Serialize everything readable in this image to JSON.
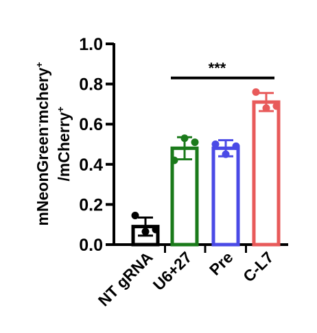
{
  "chart_data": {
    "type": "bar",
    "ylabel": {
      "line1_main": "mNeonGreen",
      "line1_sup1": "-",
      "line1_mid": "mchery",
      "line1_sup2": "+",
      "line2_main": "/mCherry",
      "line2_sup": "+"
    },
    "xlabel": "",
    "ylim": [
      0,
      1.0
    ],
    "yticks": [
      0.0,
      0.2,
      0.4,
      0.6,
      0.8,
      1.0
    ],
    "ytick_labels": [
      "0.0",
      "0.2",
      "0.4",
      "0.6",
      "0.8",
      "1.0"
    ],
    "categories": [
      "NT gRNA",
      "U6+27",
      "Pre",
      "C-L7"
    ],
    "values": [
      0.09,
      0.48,
      0.48,
      0.71
    ],
    "errors": [
      0.045,
      0.055,
      0.04,
      0.045
    ],
    "points": [
      [
        0.145,
        0.065,
        0.075
      ],
      [
        0.42,
        0.53,
        0.51
      ],
      [
        0.5,
        0.45,
        0.49
      ],
      [
        0.76,
        0.68,
        0.69
      ]
    ],
    "colors": [
      "#000000",
      "#1a7a1a",
      "#4a4ae6",
      "#e85a5a"
    ],
    "annotation": {
      "text": "***",
      "from_category": 1,
      "to_category": 3,
      "y": 0.83
    },
    "grid": false,
    "legend": "none"
  }
}
